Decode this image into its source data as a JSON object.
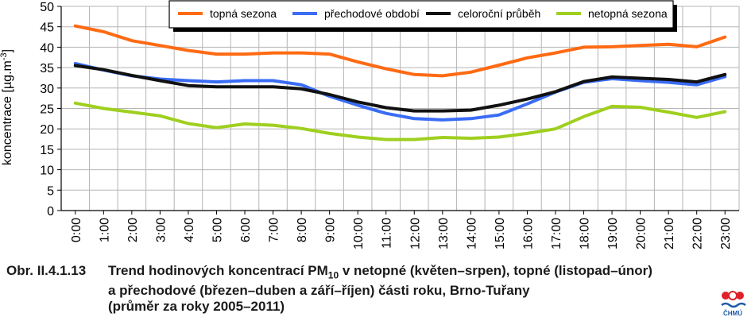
{
  "chart_data": {
    "type": "line",
    "ylabel": "koncentrace [µg.m",
    "ylabel_sup": "-3",
    "ylabel_end": "]",
    "ylim": [
      0,
      50
    ],
    "yticks": [
      0,
      5,
      10,
      15,
      20,
      25,
      30,
      35,
      40,
      45,
      50
    ],
    "grid": true,
    "legend_position": "top-center",
    "categories": [
      "0:00",
      "1:00",
      "2:00",
      "3:00",
      "4:00",
      "5:00",
      "6:00",
      "7:00",
      "8:00",
      "9:00",
      "10:00",
      "11:00",
      "12:00",
      "13:00",
      "14:00",
      "15:00",
      "16:00",
      "17:00",
      "18:00",
      "19:00",
      "20:00",
      "21:00",
      "22:00",
      "23:00"
    ],
    "series": [
      {
        "name": "topná sezona",
        "color": "#ff6a13",
        "values": [
          45.2,
          43.8,
          41.6,
          40.4,
          39.2,
          38.3,
          38.3,
          38.6,
          38.6,
          38.3,
          36.4,
          34.7,
          33.3,
          33.0,
          33.9,
          35.6,
          37.4,
          38.6,
          40.0,
          40.1,
          40.4,
          40.7,
          40.1,
          42.5
        ]
      },
      {
        "name": "přechodové období",
        "color": "#3a6cf4",
        "values": [
          36.0,
          34.4,
          33.0,
          32.2,
          31.8,
          31.5,
          31.8,
          31.8,
          30.8,
          28.0,
          25.8,
          23.8,
          22.5,
          22.2,
          22.5,
          23.4,
          26.1,
          29.0,
          31.4,
          32.3,
          31.8,
          31.4,
          30.8,
          32.8
        ]
      },
      {
        "name": "celoroční průběh",
        "color": "#111111",
        "values": [
          35.5,
          34.5,
          33.1,
          31.8,
          30.6,
          30.3,
          30.3,
          30.3,
          29.8,
          28.4,
          26.6,
          25.2,
          24.4,
          24.4,
          24.6,
          25.8,
          27.3,
          29.1,
          31.6,
          32.7,
          32.4,
          32.1,
          31.5,
          33.3
        ]
      },
      {
        "name": "netopná sezona",
        "color": "#9fcf1f",
        "values": [
          26.3,
          25.0,
          24.1,
          23.2,
          21.3,
          20.3,
          21.2,
          20.9,
          20.1,
          18.9,
          18.0,
          17.4,
          17.4,
          17.9,
          17.7,
          18.0,
          18.9,
          20.0,
          23.0,
          25.5,
          25.3,
          24.1,
          22.8,
          24.2
        ]
      }
    ]
  },
  "caption": {
    "label": "Obr. II.4.1.13",
    "text_part1": "Trend hodinových koncentrací PM",
    "text_sub": "10",
    "text_part2": " v netopné (květen–srpen), topné (listopad–únor)",
    "line2": "a přechodové (březen–duben a září–říjen) části roku, Brno-Tuřany",
    "line3": "(průměr za roky 2005–2011)"
  },
  "logo": {
    "text": "ČHMÚ",
    "icon": "chmu-logo-icon"
  }
}
